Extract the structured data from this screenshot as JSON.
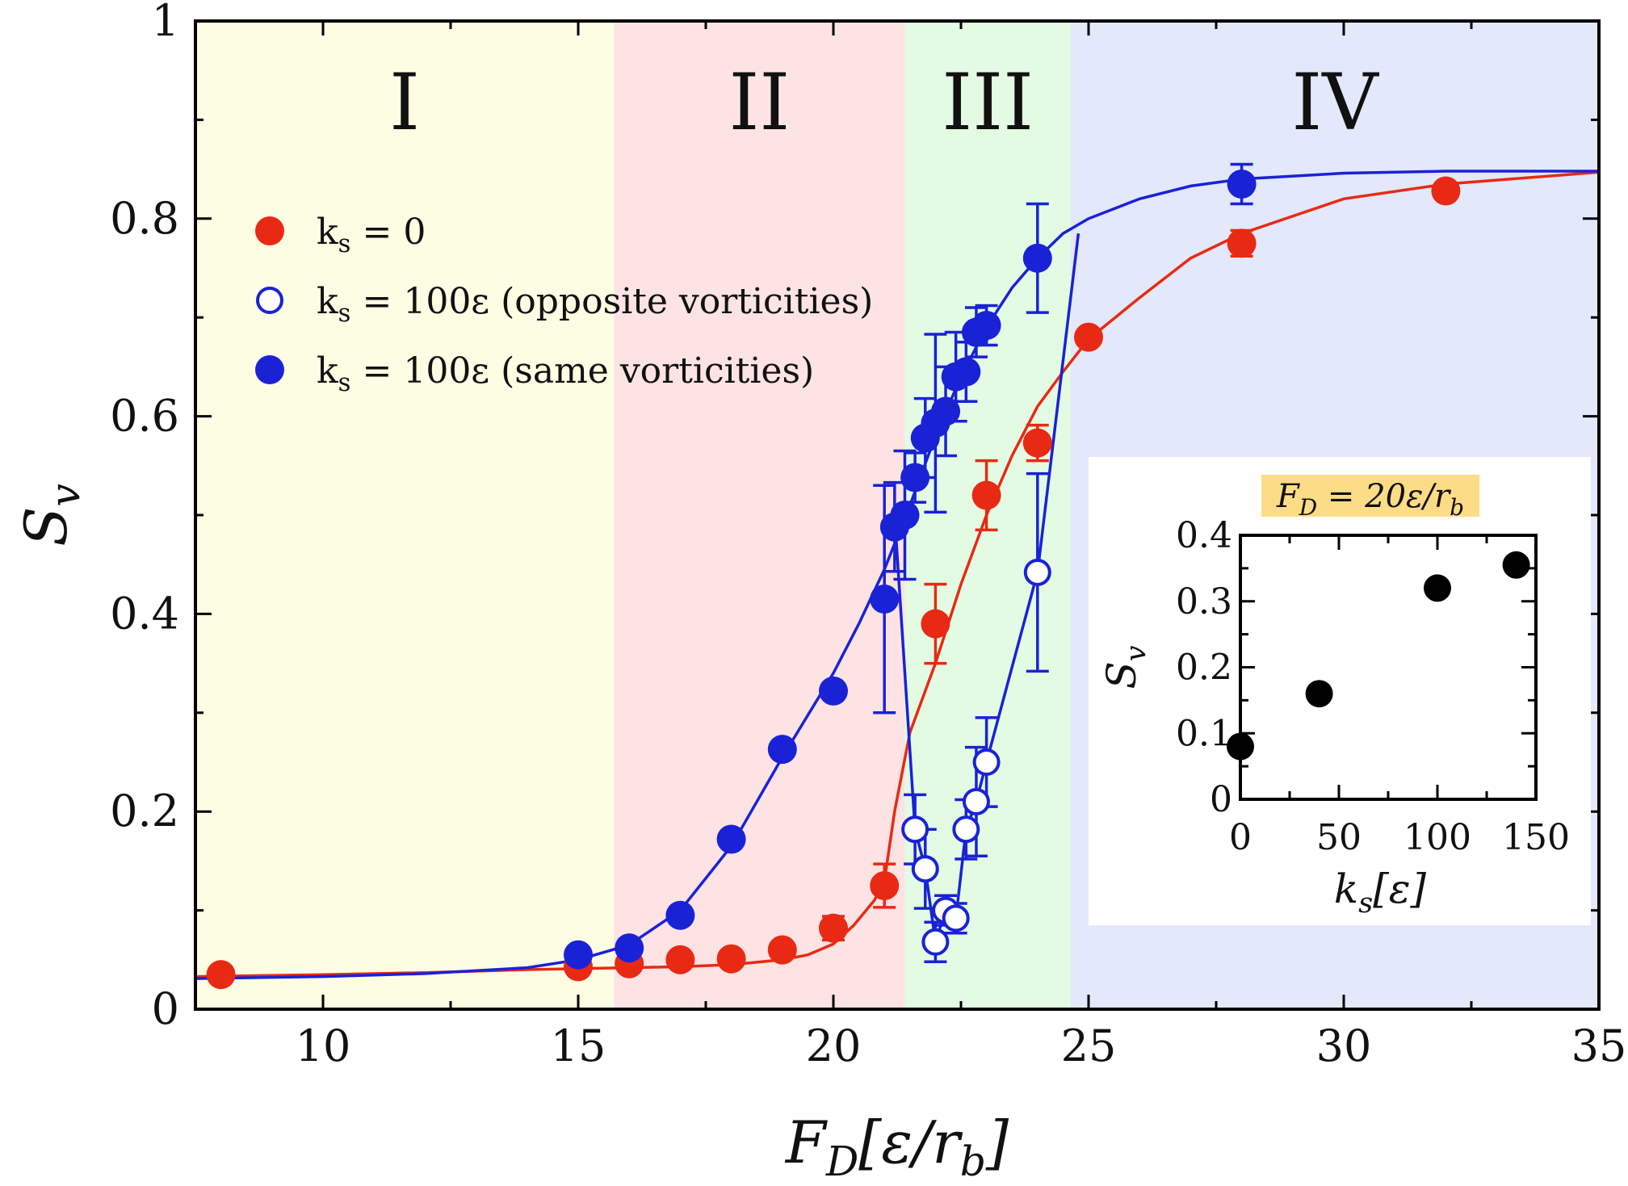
{
  "chart_data": {
    "type": "scatter",
    "xlabel": "F_D[ε/r_b]",
    "ylabel": "S_v",
    "xlim": [
      7.5,
      35
    ],
    "ylim": [
      0,
      1
    ],
    "x_ticks": [
      "10",
      "15",
      "20",
      "25",
      "30",
      "35"
    ],
    "y_ticks": [
      "0",
      "0.2",
      "0.4",
      "0.6",
      "0.8",
      "1"
    ],
    "grid": false,
    "legend_placement": "upper-left",
    "regions": [
      {
        "label": "I",
        "x_range": [
          7.5,
          15.7
        ],
        "color": "#fdfde4"
      },
      {
        "label": "II",
        "x_range": [
          15.7,
          21.4
        ],
        "color": "#fde3e3"
      },
      {
        "label": "III",
        "x_range": [
          21.4,
          24.65
        ],
        "color": "#e3fbe3"
      },
      {
        "label": "IV",
        "x_range": [
          24.65,
          35
        ],
        "color": "#e3e8fb"
      }
    ],
    "series": [
      {
        "name": "k_s = 0",
        "marker": "filled",
        "color": "#e82a14",
        "x": [
          8,
          15,
          16,
          17,
          18,
          19,
          20,
          21,
          22,
          23,
          24,
          25,
          28,
          32
        ],
        "y": [
          0.035,
          0.043,
          0.046,
          0.05,
          0.051,
          0.06,
          0.082,
          0.125,
          0.39,
          0.52,
          0.573,
          0.68,
          0.775,
          0.828
        ],
        "err": [
          0,
          0,
          0,
          0,
          0,
          0,
          0.012,
          0.022,
          0.04,
          0.035,
          0.018,
          0,
          0.013,
          0
        ]
      },
      {
        "name": "k_s = 100ε (opposite vorticities)",
        "marker": "open",
        "color": "#1a22d6",
        "x": [
          21.6,
          21.8,
          22,
          22.2,
          22.4,
          22.6,
          22.8,
          23,
          24
        ],
        "y": [
          0.182,
          0.142,
          0.068,
          0.1,
          0.092,
          0.182,
          0.21,
          0.25,
          0.442
        ],
        "err": [
          0.035,
          0.04,
          0.02,
          0.015,
          0.015,
          0.03,
          0.055,
          0.045,
          0.1
        ]
      },
      {
        "name": "k_s = 100ε (same vorticities)",
        "marker": "filled",
        "color": "#1a22d6",
        "x": [
          15,
          16,
          17,
          18,
          19,
          20,
          21,
          21.2,
          21.4,
          21.6,
          21.8,
          22,
          22.2,
          22.4,
          22.6,
          22.8,
          23,
          24,
          28
        ],
        "y": [
          0.055,
          0.062,
          0.095,
          0.172,
          0.263,
          0.322,
          0.415,
          0.488,
          0.5,
          0.538,
          0.578,
          0.593,
          0.605,
          0.64,
          0.645,
          0.685,
          0.692,
          0.76,
          0.835
        ],
        "err": [
          0,
          0,
          0,
          0,
          0,
          0,
          0.115,
          0.045,
          0.065,
          0.025,
          0.04,
          0.09,
          0.045,
          0.045,
          0.03,
          0.025,
          0.02,
          0.055,
          0.02
        ]
      }
    ],
    "fit_curves": [
      {
        "series": "k_s = 0",
        "color": "#e82a14",
        "x": [
          7.5,
          10,
          12,
          14,
          15,
          16,
          17,
          18,
          19,
          19.5,
          20,
          20.4,
          20.8,
          21,
          21.2,
          21.5,
          22,
          22.5,
          23,
          23.5,
          24,
          24.5,
          25,
          26,
          27,
          28,
          30,
          32,
          35
        ],
        "y": [
          0.033,
          0.035,
          0.037,
          0.04,
          0.041,
          0.042,
          0.043,
          0.045,
          0.05,
          0.055,
          0.066,
          0.085,
          0.11,
          0.13,
          0.2,
          0.28,
          0.35,
          0.43,
          0.5,
          0.56,
          0.61,
          0.645,
          0.678,
          0.72,
          0.76,
          0.785,
          0.82,
          0.835,
          0.847
        ]
      },
      {
        "series": "k_s = 100ε (same vorticities)",
        "color": "#1a22d6",
        "x": [
          7.5,
          10,
          12,
          14,
          15,
          16,
          17,
          18,
          19,
          20,
          20.5,
          21,
          21.5,
          22,
          22.5,
          23,
          23.5,
          24,
          24.5,
          25,
          26,
          27,
          28,
          30,
          32,
          35
        ],
        "y": [
          0.031,
          0.033,
          0.036,
          0.042,
          0.05,
          0.065,
          0.1,
          0.165,
          0.255,
          0.34,
          0.39,
          0.445,
          0.51,
          0.58,
          0.64,
          0.69,
          0.73,
          0.76,
          0.785,
          0.8,
          0.82,
          0.833,
          0.84,
          0.846,
          0.848,
          0.848
        ]
      },
      {
        "series": "k_s = 100ε (opposite vorticities)",
        "color": "#1a22d6",
        "x": [
          21.2,
          21.6,
          21.8,
          22,
          22.2,
          22.4,
          22.6,
          22.8,
          23,
          24,
          24.8
        ],
        "y": [
          0.5,
          0.182,
          0.142,
          0.068,
          0.1,
          0.092,
          0.182,
          0.21,
          0.25,
          0.442,
          0.785
        ]
      }
    ],
    "inset": {
      "type": "scatter",
      "title": "F_D = 20ε/r_b",
      "xlabel": "k_s[ε]",
      "ylabel": "S_v",
      "xlim": [
        0,
        150
      ],
      "ylim": [
        0,
        0.4
      ],
      "x_ticks": [
        "0",
        "50",
        "100",
        "150"
      ],
      "y_ticks": [
        "0",
        "0.1",
        "0.2",
        "0.3",
        "0.4"
      ],
      "color": "#000000",
      "title_background": "#fddc87",
      "x": [
        0,
        40,
        100,
        140
      ],
      "y": [
        0.08,
        0.16,
        0.32,
        0.355
      ]
    }
  }
}
